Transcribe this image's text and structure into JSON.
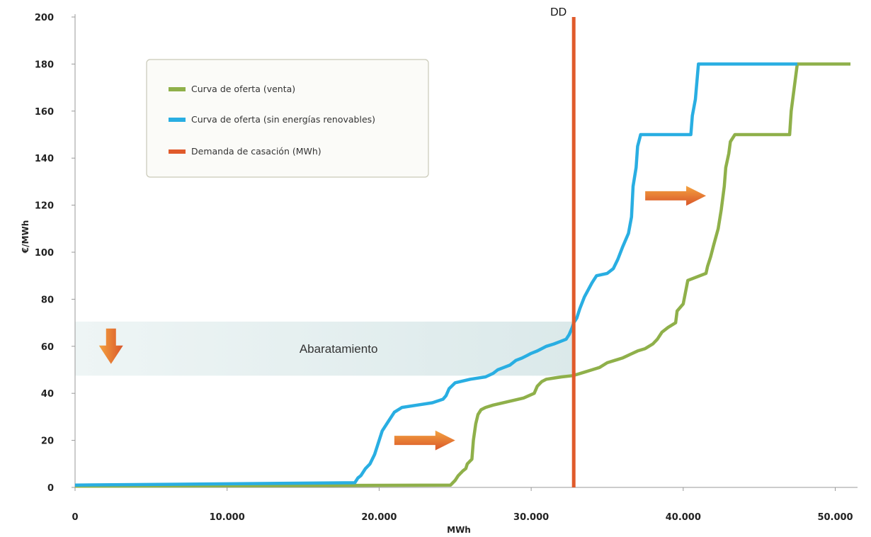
{
  "chart_data": {
    "type": "line",
    "title": "",
    "xlabel": "MWh",
    "ylabel": "€/MWh",
    "xlim": [
      0,
      51000
    ],
    "ylim": [
      0,
      200
    ],
    "x_ticks": [
      0,
      10000,
      20000,
      30000,
      40000,
      50000
    ],
    "x_tick_labels": [
      "0",
      "10.000",
      "20.000",
      "30.000",
      "40.000",
      "50.000"
    ],
    "y_ticks": [
      0,
      20,
      40,
      60,
      80,
      100,
      120,
      140,
      160,
      180,
      200
    ],
    "y_tick_labels": [
      "0",
      "20",
      "40",
      "60",
      "80",
      "100",
      "120",
      "140",
      "160",
      "180",
      "200"
    ],
    "grid": false,
    "legend_position": "top-left",
    "series": [
      {
        "name": "Curva de oferta (venta)",
        "color": "#8fb04a",
        "x": [
          0,
          24700,
          25000,
          25200,
          25500,
          25700,
          25800,
          26100,
          26200,
          26350,
          26500,
          26700,
          27000,
          27500,
          28500,
          29500,
          30200,
          30400,
          30700,
          31000,
          31500,
          32000,
          32700,
          33000,
          33500,
          34000,
          34500,
          35000,
          35500,
          36000,
          37000,
          37500,
          38000,
          38300,
          38600,
          39000,
          39500,
          39600,
          40000,
          40300,
          41500,
          41600,
          41800,
          42000,
          42300,
          42500,
          42700,
          42800,
          43000,
          43100,
          43400,
          47000,
          47100,
          47300,
          47500,
          51000
        ],
        "values": [
          0.5,
          1,
          3,
          5,
          7,
          8,
          10,
          12,
          20,
          27,
          31,
          33,
          34,
          35,
          36.5,
          38,
          40,
          43,
          45,
          46,
          46.5,
          47,
          47.5,
          48,
          49,
          50,
          51,
          53,
          54,
          55,
          58,
          59,
          61,
          63,
          66,
          68,
          70,
          75,
          78,
          88,
          91,
          94,
          98,
          103,
          110,
          118,
          128,
          136,
          142,
          147,
          150,
          150,
          160,
          170,
          180,
          180
        ]
      },
      {
        "name": "Curva de oferta (sin energías renovables)",
        "color": "#29aee2",
        "x": [
          0,
          18400,
          18600,
          18800,
          19100,
          19400,
          19700,
          19900,
          20200,
          20600,
          21000,
          21500,
          22500,
          23500,
          24200,
          24400,
          24600,
          25000,
          26000,
          27000,
          27500,
          27800,
          28200,
          28600,
          29000,
          29400,
          29700,
          30000,
          30400,
          30700,
          31000,
          31500,
          31900,
          32300,
          32500,
          32700,
          32800,
          33000,
          33200,
          33500,
          34000,
          34300,
          35000,
          35400,
          35700,
          36000,
          36400,
          36600,
          36700,
          36900,
          37000,
          37200,
          40500,
          40600,
          40800,
          41000,
          47500
        ],
        "values": [
          1,
          2,
          4,
          5,
          8,
          10,
          14,
          18,
          24,
          28,
          32,
          34,
          35,
          36,
          37.5,
          39,
          42,
          44.5,
          46,
          47,
          48.5,
          50,
          51,
          52,
          54,
          55,
          56,
          57,
          58,
          59,
          60,
          61,
          62,
          63,
          65,
          68,
          70,
          72,
          76,
          81,
          87,
          90,
          91,
          93,
          97,
          102,
          108,
          115,
          128,
          136,
          145,
          150,
          150,
          158,
          165,
          180,
          180
        ]
      },
      {
        "name": "Demanda de casación (MWh)",
        "color": "#e05a2b",
        "x": [
          32800,
          32800
        ],
        "values": [
          0,
          200
        ]
      }
    ],
    "annotations": [
      {
        "text": "DD",
        "x": 32800,
        "y": 200
      },
      {
        "text": "Abaratamiento",
        "y_range": [
          47.5,
          70.5
        ],
        "x_range": [
          0,
          32800
        ]
      }
    ],
    "reference_lines": [
      {
        "axis": "y",
        "value": 70.5,
        "style": "dashed",
        "colors": [
          "#f2a32f",
          "#d24e2a"
        ]
      },
      {
        "axis": "y",
        "value": 47.5,
        "style": "dashed",
        "colors": [
          "#f2a32f",
          "#d24e2a"
        ]
      }
    ],
    "arrows": [
      {
        "direction": "down",
        "x": 1200,
        "y": 60
      },
      {
        "direction": "right",
        "from": [
          21000,
          20
        ],
        "to": [
          25000,
          20
        ]
      },
      {
        "direction": "right",
        "from": [
          37500,
          124
        ],
        "to": [
          41500,
          124
        ]
      }
    ]
  }
}
